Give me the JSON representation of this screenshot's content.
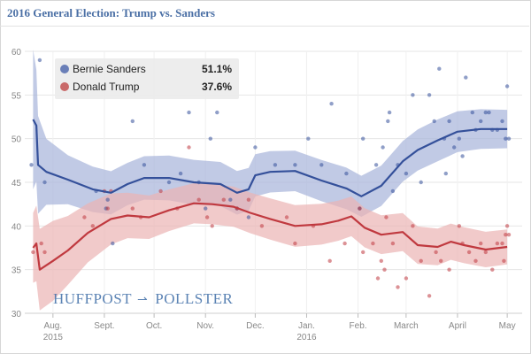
{
  "title": "2016 General Election: Trump vs. Sanders",
  "watermark": {
    "left": "HUFFPOST",
    "icon": "pollster-arrow-icon",
    "right": "POLLSTER"
  },
  "legend": [
    {
      "name": "Bernie Sanders",
      "value": "51.1%",
      "color": "#6a7fb8"
    },
    {
      "name": "Donald Trump",
      "value": "37.6%",
      "color": "#c96a6a"
    }
  ],
  "chart_data": {
    "type": "line",
    "title": "2016 General Election: Trump vs. Sanders",
    "xlim": [
      "2015-07-15",
      "2016-05-10"
    ],
    "ylim": [
      30,
      60
    ],
    "yticks": [
      30,
      35,
      40,
      45,
      50,
      55,
      60
    ],
    "xticks": [
      {
        "date": "2015-08-01",
        "label": "Aug."
      },
      {
        "date": "2015-09-01",
        "label": "Sept."
      },
      {
        "date": "2015-10-01",
        "label": "Oct."
      },
      {
        "date": "2015-11-01",
        "label": "Nov."
      },
      {
        "date": "2015-12-01",
        "label": "Dec."
      },
      {
        "date": "2016-01-01",
        "label": "Jan."
      },
      {
        "date": "2016-02-01",
        "label": "Feb."
      },
      {
        "date": "2016-03-01",
        "label": "March"
      },
      {
        "date": "2016-04-01",
        "label": "April"
      },
      {
        "date": "2016-05-01",
        "label": "May"
      }
    ],
    "year_labels": [
      {
        "date": "2015-08-01",
        "label": "2015"
      },
      {
        "date": "2016-01-01",
        "label": "2016"
      }
    ],
    "grid": true,
    "series": [
      {
        "name": "Bernie Sanders",
        "color": "#34509a",
        "band_color": "#a7b4da",
        "trend": [
          [
            "2015-07-20",
            52.2
          ],
          [
            "2015-07-22",
            51.5
          ],
          [
            "2015-07-23",
            47.0
          ],
          [
            "2015-07-28",
            46.2
          ],
          [
            "2015-08-10",
            45.3
          ],
          [
            "2015-08-25",
            44.2
          ],
          [
            "2015-09-05",
            43.8
          ],
          [
            "2015-09-15",
            44.8
          ],
          [
            "2015-09-25",
            45.5
          ],
          [
            "2015-10-10",
            45.5
          ],
          [
            "2015-10-25",
            45.0
          ],
          [
            "2015-11-10",
            44.8
          ],
          [
            "2015-11-20",
            43.8
          ],
          [
            "2015-11-27",
            44.2
          ],
          [
            "2015-12-01",
            45.8
          ],
          [
            "2015-12-10",
            46.2
          ],
          [
            "2015-12-25",
            46.3
          ],
          [
            "2016-01-10",
            45.2
          ],
          [
            "2016-01-25",
            44.3
          ],
          [
            "2016-02-03",
            43.4
          ],
          [
            "2016-02-15",
            44.6
          ],
          [
            "2016-02-28",
            47.4
          ],
          [
            "2016-03-08",
            48.7
          ],
          [
            "2016-03-20",
            49.8
          ],
          [
            "2016-04-01",
            50.8
          ],
          [
            "2016-04-15",
            51.1
          ],
          [
            "2016-05-01",
            51.1
          ]
        ],
        "band_halfwidth": [
          [
            "2015-07-20",
            8.0
          ],
          [
            "2015-07-25",
            4.0
          ],
          [
            "2015-08-10",
            2.8
          ],
          [
            "2015-09-10",
            2.4
          ],
          [
            "2015-10-15",
            2.6
          ],
          [
            "2015-11-20",
            2.5
          ],
          [
            "2015-12-20",
            2.3
          ],
          [
            "2016-01-20",
            2.4
          ],
          [
            "2016-02-20",
            2.3
          ],
          [
            "2016-03-20",
            2.4
          ],
          [
            "2016-05-01",
            2.2
          ]
        ],
        "polls": [
          [
            "2015-07-19",
            47
          ],
          [
            "2015-07-24",
            59
          ],
          [
            "2015-07-27",
            45
          ],
          [
            "2015-08-27",
            44
          ],
          [
            "2015-09-02",
            42
          ],
          [
            "2015-09-03",
            43
          ],
          [
            "2015-09-06",
            38
          ],
          [
            "2015-09-18",
            52
          ],
          [
            "2015-09-25",
            47
          ],
          [
            "2015-10-10",
            45
          ],
          [
            "2015-10-17",
            46
          ],
          [
            "2015-10-22",
            53
          ],
          [
            "2015-10-28",
            45
          ],
          [
            "2015-11-01",
            42
          ],
          [
            "2015-11-04",
            50
          ],
          [
            "2015-11-08",
            53
          ],
          [
            "2015-11-16",
            43
          ],
          [
            "2015-11-20",
            42
          ],
          [
            "2015-11-27",
            41
          ],
          [
            "2015-12-01",
            49
          ],
          [
            "2015-12-13",
            47
          ],
          [
            "2015-12-25",
            47
          ],
          [
            "2016-01-02",
            50
          ],
          [
            "2016-01-10",
            47
          ],
          [
            "2016-01-16",
            54
          ],
          [
            "2016-01-25",
            46
          ],
          [
            "2016-02-02",
            42
          ],
          [
            "2016-02-04",
            50
          ],
          [
            "2016-02-12",
            47
          ],
          [
            "2016-02-16",
            49
          ],
          [
            "2016-02-19",
            52
          ],
          [
            "2016-02-20",
            53
          ],
          [
            "2016-02-22",
            44
          ],
          [
            "2016-02-25",
            47
          ],
          [
            "2016-03-01",
            46
          ],
          [
            "2016-03-05",
            55
          ],
          [
            "2016-03-10",
            45
          ],
          [
            "2016-03-15",
            55
          ],
          [
            "2016-03-18",
            52
          ],
          [
            "2016-03-21",
            58
          ],
          [
            "2016-03-24",
            50
          ],
          [
            "2016-03-25",
            46
          ],
          [
            "2016-03-27",
            52
          ],
          [
            "2016-03-30",
            49
          ],
          [
            "2016-04-02",
            50
          ],
          [
            "2016-04-04",
            48
          ],
          [
            "2016-04-06",
            57
          ],
          [
            "2016-04-10",
            53
          ],
          [
            "2016-04-12",
            51
          ],
          [
            "2016-04-15",
            52
          ],
          [
            "2016-04-18",
            53
          ],
          [
            "2016-04-20",
            53
          ],
          [
            "2016-04-22",
            51
          ],
          [
            "2016-04-25",
            51
          ],
          [
            "2016-04-28",
            52
          ],
          [
            "2016-05-01",
            56
          ],
          [
            "2016-05-02",
            50
          ],
          [
            "2016-04-30",
            50
          ]
        ]
      },
      {
        "name": "Donald Trump",
        "color": "#c0393f",
        "band_color": "#ebb4b4",
        "trend": [
          [
            "2015-07-20",
            37.5
          ],
          [
            "2015-07-22",
            38.0
          ],
          [
            "2015-07-24",
            35.0
          ],
          [
            "2015-08-01",
            36.0
          ],
          [
            "2015-08-10",
            37.2
          ],
          [
            "2015-08-22",
            39.2
          ],
          [
            "2015-09-05",
            40.8
          ],
          [
            "2015-09-15",
            41.2
          ],
          [
            "2015-09-28",
            41.0
          ],
          [
            "2015-10-10",
            41.8
          ],
          [
            "2015-10-25",
            42.6
          ],
          [
            "2015-11-05",
            42.5
          ],
          [
            "2015-11-18",
            42.2
          ],
          [
            "2015-11-28",
            41.5
          ],
          [
            "2015-12-10",
            40.8
          ],
          [
            "2015-12-25",
            40.0
          ],
          [
            "2016-01-10",
            40.2
          ],
          [
            "2016-01-20",
            40.6
          ],
          [
            "2016-01-28",
            41.1
          ],
          [
            "2016-02-05",
            39.8
          ],
          [
            "2016-02-15",
            39.0
          ],
          [
            "2016-02-28",
            39.3
          ],
          [
            "2016-03-08",
            37.8
          ],
          [
            "2016-03-20",
            37.6
          ],
          [
            "2016-03-28",
            38.2
          ],
          [
            "2016-04-05",
            37.8
          ],
          [
            "2016-04-18",
            37.3
          ],
          [
            "2016-05-01",
            37.6
          ]
        ],
        "band_halfwidth": [
          [
            "2015-07-20",
            4.0
          ],
          [
            "2015-07-26",
            5.0
          ],
          [
            "2015-08-15",
            3.6
          ],
          [
            "2015-09-15",
            2.6
          ],
          [
            "2015-10-20",
            2.3
          ],
          [
            "2015-11-20",
            2.3
          ],
          [
            "2015-12-20",
            2.4
          ],
          [
            "2016-01-20",
            2.3
          ],
          [
            "2016-02-20",
            2.2
          ],
          [
            "2016-03-20",
            2.1
          ],
          [
            "2016-05-01",
            2.0
          ]
        ],
        "polls": [
          [
            "2015-07-20",
            37
          ],
          [
            "2015-07-25",
            38
          ],
          [
            "2015-07-27",
            37
          ],
          [
            "2015-08-20",
            41
          ],
          [
            "2015-08-25",
            40
          ],
          [
            "2015-09-01",
            44
          ],
          [
            "2015-09-03",
            42
          ],
          [
            "2015-09-05",
            44
          ],
          [
            "2015-09-18",
            42
          ],
          [
            "2015-09-23",
            41
          ],
          [
            "2015-10-05",
            44
          ],
          [
            "2015-10-15",
            42
          ],
          [
            "2015-10-22",
            49
          ],
          [
            "2015-10-28",
            43
          ],
          [
            "2015-11-02",
            41
          ],
          [
            "2015-11-05",
            40
          ],
          [
            "2015-11-12",
            43
          ],
          [
            "2015-11-20",
            42
          ],
          [
            "2015-11-27",
            43
          ],
          [
            "2015-12-05",
            40
          ],
          [
            "2015-12-20",
            41
          ],
          [
            "2015-12-25",
            38
          ],
          [
            "2016-01-05",
            40
          ],
          [
            "2016-01-15",
            36
          ],
          [
            "2016-01-24",
            38
          ],
          [
            "2016-02-02",
            42
          ],
          [
            "2016-02-04",
            37
          ],
          [
            "2016-02-10",
            38
          ],
          [
            "2016-02-13",
            34
          ],
          [
            "2016-02-15",
            36
          ],
          [
            "2016-02-17",
            35
          ],
          [
            "2016-02-18",
            41
          ],
          [
            "2016-02-22",
            38
          ],
          [
            "2016-02-25",
            33
          ],
          [
            "2016-03-01",
            34
          ],
          [
            "2016-03-05",
            40
          ],
          [
            "2016-03-10",
            36
          ],
          [
            "2016-03-15",
            32
          ],
          [
            "2016-03-19",
            37
          ],
          [
            "2016-03-22",
            36
          ],
          [
            "2016-03-27",
            35
          ],
          [
            "2016-04-02",
            40
          ],
          [
            "2016-04-04",
            38
          ],
          [
            "2016-04-08",
            37
          ],
          [
            "2016-04-12",
            36
          ],
          [
            "2016-04-15",
            38
          ],
          [
            "2016-04-18",
            37
          ],
          [
            "2016-04-22",
            35
          ],
          [
            "2016-04-25",
            38
          ],
          [
            "2016-04-28",
            38
          ],
          [
            "2016-04-30",
            39
          ],
          [
            "2016-05-01",
            40
          ],
          [
            "2016-05-02",
            39
          ],
          [
            "2016-04-29",
            36
          ]
        ]
      }
    ]
  }
}
